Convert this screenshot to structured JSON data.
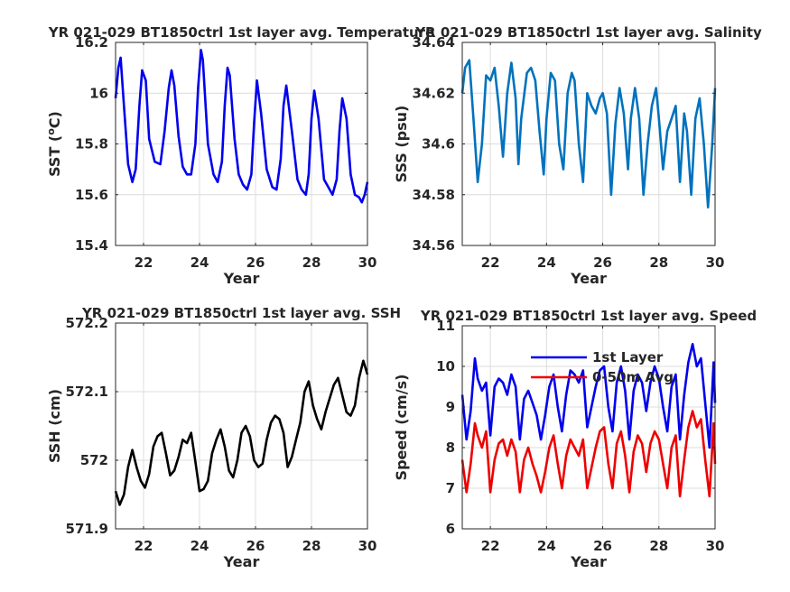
{
  "chart_data": [
    {
      "type": "line",
      "title": "YR 021-029 BT1850ctrl 1st layer avg. Temperature",
      "xlabel": "Year",
      "ylabel": "SST (oC)",
      "ylabel_parts": {
        "main": "SST (",
        "sup": "o",
        "rest": "C)"
      },
      "xlim": [
        21,
        30
      ],
      "ylim": [
        15.4,
        16.2
      ],
      "xticks": [
        "22",
        "24",
        "26",
        "28",
        "30"
      ],
      "xtick_values": [
        22,
        24,
        26,
        28,
        30
      ],
      "yticks": [
        "15.4",
        "15.6",
        "15.8",
        "16",
        "16.2"
      ],
      "ytick_values": [
        15.4,
        15.6,
        15.8,
        16,
        16.2
      ],
      "grid": true,
      "series": [
        {
          "color": "#0000ee",
          "x": [
            21.0,
            21.1,
            21.18,
            21.3,
            21.45,
            21.6,
            21.72,
            21.85,
            21.95,
            22.08,
            22.2,
            22.4,
            22.6,
            22.75,
            22.9,
            23.0,
            23.1,
            23.25,
            23.4,
            23.55,
            23.7,
            23.85,
            23.95,
            24.05,
            24.12,
            24.3,
            24.5,
            24.65,
            24.8,
            24.9,
            25.0,
            25.08,
            25.25,
            25.4,
            25.55,
            25.7,
            25.85,
            25.95,
            26.05,
            26.2,
            26.4,
            26.6,
            26.75,
            26.9,
            27.0,
            27.1,
            27.3,
            27.5,
            27.65,
            27.8,
            27.9,
            28.0,
            28.1,
            28.25,
            28.45,
            28.6,
            28.75,
            28.9,
            29.0,
            29.1,
            29.25,
            29.4,
            29.55,
            29.7,
            29.8,
            29.9,
            30.0
          ],
          "values": [
            15.98,
            16.1,
            16.14,
            15.95,
            15.72,
            15.65,
            15.7,
            15.95,
            16.09,
            16.05,
            15.82,
            15.73,
            15.72,
            15.85,
            16.02,
            16.09,
            16.03,
            15.83,
            15.71,
            15.68,
            15.68,
            15.8,
            16.02,
            16.17,
            16.13,
            15.8,
            15.68,
            15.65,
            15.73,
            15.95,
            16.1,
            16.07,
            15.82,
            15.68,
            15.64,
            15.62,
            15.68,
            15.88,
            16.05,
            15.92,
            15.7,
            15.63,
            15.62,
            15.74,
            15.95,
            16.03,
            15.85,
            15.66,
            15.62,
            15.6,
            15.68,
            15.9,
            16.01,
            15.9,
            15.66,
            15.63,
            15.6,
            15.66,
            15.85,
            15.98,
            15.9,
            15.68,
            15.6,
            15.59,
            15.57,
            15.6,
            15.65
          ]
        }
      ]
    },
    {
      "type": "line",
      "title": "YR 021-029 BT1850ctrl 1st layer avg. Salinity",
      "xlabel": "Year",
      "ylabel": "SSS (psu)",
      "xlim": [
        21,
        30
      ],
      "ylim": [
        34.56,
        34.64
      ],
      "xticks": [
        "22",
        "24",
        "26",
        "28",
        "30"
      ],
      "xtick_values": [
        22,
        24,
        26,
        28,
        30
      ],
      "yticks": [
        "34.56",
        "34.58",
        "34.6",
        "34.62",
        "34.64"
      ],
      "ytick_values": [
        34.56,
        34.58,
        34.6,
        34.62,
        34.64
      ],
      "grid": true,
      "series": [
        {
          "color": "#0072bd",
          "x": [
            21.0,
            21.1,
            21.25,
            21.4,
            21.55,
            21.7,
            21.85,
            22.0,
            22.15,
            22.3,
            22.45,
            22.6,
            22.75,
            22.9,
            23.0,
            23.1,
            23.3,
            23.45,
            23.6,
            23.75,
            23.9,
            24.0,
            24.15,
            24.3,
            24.45,
            24.6,
            24.75,
            24.9,
            25.0,
            25.15,
            25.3,
            25.45,
            25.6,
            25.75,
            25.9,
            26.0,
            26.15,
            26.3,
            26.45,
            26.6,
            26.75,
            26.9,
            27.0,
            27.15,
            27.3,
            27.45,
            27.6,
            27.75,
            27.9,
            28.0,
            28.15,
            28.3,
            28.45,
            28.6,
            28.75,
            28.9,
            29.0,
            29.15,
            29.3,
            29.45,
            29.6,
            29.75,
            29.9,
            30.0
          ],
          "values": [
            34.62,
            34.63,
            34.633,
            34.61,
            34.585,
            34.6,
            34.627,
            34.625,
            34.63,
            34.615,
            34.595,
            34.62,
            34.632,
            34.618,
            34.592,
            34.61,
            34.628,
            34.63,
            34.625,
            34.605,
            34.588,
            34.61,
            34.628,
            34.625,
            34.6,
            34.59,
            34.62,
            34.628,
            34.625,
            34.6,
            34.585,
            34.62,
            34.615,
            34.612,
            34.618,
            34.62,
            34.612,
            34.58,
            34.608,
            34.622,
            34.612,
            34.59,
            34.61,
            34.622,
            34.61,
            34.58,
            34.6,
            34.615,
            34.622,
            34.61,
            34.59,
            34.605,
            34.61,
            34.615,
            34.585,
            34.612,
            34.605,
            34.58,
            34.61,
            34.618,
            34.6,
            34.575,
            34.6,
            34.622
          ]
        }
      ]
    },
    {
      "type": "line",
      "title": "YR 021-029 BT1850ctrl 1st layer avg. SSH",
      "xlabel": "Year",
      "ylabel": "SSH (cm)",
      "xlim": [
        21,
        30
      ],
      "ylim": [
        571.9,
        572.2
      ],
      "xticks": [
        "22",
        "24",
        "26",
        "28",
        "30"
      ],
      "xtick_values": [
        22,
        24,
        26,
        28,
        30
      ],
      "yticks": [
        "571.9",
        "572",
        "572.1",
        "572.2"
      ],
      "ytick_values": [
        571.9,
        572,
        572.1,
        572.2
      ],
      "grid": true,
      "series": [
        {
          "color": "#000000",
          "x": [
            21.0,
            21.15,
            21.3,
            21.45,
            21.6,
            21.75,
            21.9,
            22.05,
            22.2,
            22.35,
            22.5,
            22.65,
            22.8,
            22.95,
            23.1,
            23.25,
            23.4,
            23.55,
            23.7,
            23.85,
            24.0,
            24.15,
            24.3,
            24.45,
            24.6,
            24.75,
            24.9,
            25.05,
            25.2,
            25.35,
            25.5,
            25.65,
            25.8,
            25.95,
            26.1,
            26.25,
            26.4,
            26.55,
            26.7,
            26.85,
            27.0,
            27.15,
            27.3,
            27.45,
            27.6,
            27.75,
            27.9,
            28.05,
            28.2,
            28.35,
            28.5,
            28.65,
            28.8,
            28.95,
            29.1,
            29.25,
            29.4,
            29.55,
            29.7,
            29.85,
            30.0
          ],
          "values": [
            571.955,
            571.935,
            571.95,
            571.99,
            572.015,
            571.99,
            571.97,
            571.96,
            571.98,
            572.02,
            572.035,
            572.04,
            572.01,
            571.978,
            571.985,
            572.005,
            572.03,
            572.025,
            572.04,
            571.998,
            571.955,
            571.958,
            571.97,
            572.01,
            572.03,
            572.045,
            572.02,
            571.985,
            571.975,
            572.0,
            572.04,
            572.05,
            572.035,
            572.0,
            571.99,
            571.995,
            572.03,
            572.055,
            572.065,
            572.06,
            572.04,
            571.99,
            572.005,
            572.03,
            572.055,
            572.1,
            572.115,
            572.08,
            572.06,
            572.045,
            572.07,
            572.09,
            572.11,
            572.12,
            572.095,
            572.07,
            572.065,
            572.08,
            572.12,
            572.145,
            572.125
          ]
        }
      ]
    },
    {
      "type": "line",
      "title": "YR 021-029 BT1850ctrl 1st layer avg. Speed",
      "xlabel": "Year",
      "ylabel": "Speed (cm/s)",
      "xlim": [
        21,
        30
      ],
      "ylim": [
        6,
        11
      ],
      "xticks": [
        "22",
        "24",
        "26",
        "28",
        "30"
      ],
      "xtick_values": [
        22,
        24,
        26,
        28,
        30
      ],
      "yticks": [
        "6",
        "7",
        "8",
        "9",
        "10",
        "11"
      ],
      "ytick_values": [
        6,
        7,
        8,
        9,
        10,
        11
      ],
      "grid": true,
      "legend": "top-center",
      "series": [
        {
          "name": "1st Layer",
          "color": "#0000ee",
          "x": [
            21.0,
            21.15,
            21.3,
            21.45,
            21.55,
            21.7,
            21.85,
            22.0,
            22.15,
            22.3,
            22.45,
            22.6,
            22.75,
            22.9,
            23.05,
            23.2,
            23.35,
            23.5,
            23.65,
            23.8,
            23.95,
            24.1,
            24.25,
            24.4,
            24.55,
            24.7,
            24.85,
            25.0,
            25.15,
            25.3,
            25.45,
            25.6,
            25.75,
            25.9,
            26.05,
            26.2,
            26.35,
            26.5,
            26.65,
            26.8,
            26.95,
            27.1,
            27.25,
            27.4,
            27.55,
            27.7,
            27.85,
            28.0,
            28.15,
            28.3,
            28.45,
            28.6,
            28.75,
            28.9,
            29.05,
            29.2,
            29.35,
            29.5,
            29.65,
            29.8,
            29.95,
            30.0
          ],
          "values": [
            9.3,
            8.2,
            8.9,
            10.2,
            9.7,
            9.4,
            9.6,
            8.3,
            9.5,
            9.7,
            9.6,
            9.3,
            9.8,
            9.5,
            8.2,
            9.2,
            9.4,
            9.1,
            8.8,
            8.2,
            8.8,
            9.5,
            9.8,
            9.0,
            8.4,
            9.3,
            9.9,
            9.8,
            9.6,
            9.9,
            8.5,
            9.0,
            9.5,
            9.9,
            10.0,
            9.0,
            8.4,
            9.6,
            10.0,
            9.4,
            8.2,
            9.4,
            9.8,
            9.6,
            8.9,
            9.6,
            10.0,
            9.7,
            9.0,
            8.4,
            9.5,
            9.8,
            8.2,
            9.3,
            10.1,
            10.55,
            10.0,
            10.2,
            9.1,
            8.0,
            10.1,
            9.1
          ]
        },
        {
          "name": "0-50m Avg.",
          "color": "#ee0000",
          "x": [
            21.0,
            21.15,
            21.3,
            21.45,
            21.55,
            21.7,
            21.85,
            22.0,
            22.15,
            22.3,
            22.45,
            22.6,
            22.75,
            22.9,
            23.05,
            23.2,
            23.35,
            23.5,
            23.65,
            23.8,
            23.95,
            24.1,
            24.25,
            24.4,
            24.55,
            24.7,
            24.85,
            25.0,
            25.15,
            25.3,
            25.45,
            25.6,
            25.75,
            25.9,
            26.05,
            26.2,
            26.35,
            26.5,
            26.65,
            26.8,
            26.95,
            27.1,
            27.25,
            27.4,
            27.55,
            27.7,
            27.85,
            28.0,
            28.15,
            28.3,
            28.45,
            28.6,
            28.75,
            28.9,
            29.05,
            29.2,
            29.35,
            29.5,
            29.65,
            29.8,
            29.95,
            30.0
          ],
          "values": [
            7.7,
            6.9,
            7.6,
            8.6,
            8.3,
            8.0,
            8.4,
            6.9,
            7.7,
            8.1,
            8.2,
            7.8,
            8.2,
            7.9,
            6.9,
            7.7,
            8.0,
            7.6,
            7.3,
            6.9,
            7.4,
            8.0,
            8.3,
            7.6,
            7.0,
            7.8,
            8.2,
            8.0,
            7.8,
            8.2,
            7.0,
            7.5,
            8.0,
            8.4,
            8.5,
            7.6,
            7.0,
            8.1,
            8.4,
            7.8,
            6.9,
            7.9,
            8.3,
            8.1,
            7.4,
            8.1,
            8.4,
            8.2,
            7.6,
            7.0,
            8.0,
            8.3,
            6.8,
            7.7,
            8.5,
            8.9,
            8.5,
            8.7,
            7.7,
            6.8,
            8.6,
            7.6
          ]
        }
      ]
    }
  ]
}
